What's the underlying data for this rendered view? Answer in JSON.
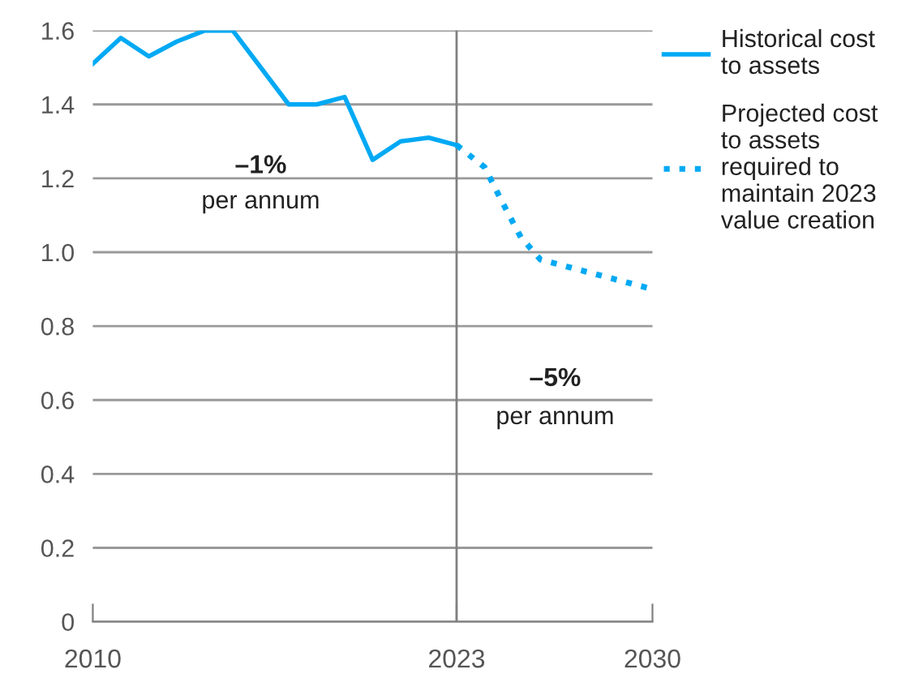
{
  "chart_data": {
    "type": "line",
    "series": [
      {
        "name": "Historical cost to assets",
        "color": "#00a9f4",
        "line_style": "solid",
        "x": [
          2010,
          2011,
          2012,
          2013,
          2014,
          2015,
          2017,
          2018,
          2019,
          2020,
          2021,
          2022,
          2023
        ],
        "values": [
          1.51,
          1.58,
          1.53,
          1.57,
          1.6,
          1.6,
          1.4,
          1.4,
          1.42,
          1.25,
          1.3,
          1.31,
          1.29
        ]
      },
      {
        "name": "Projected cost to assets required to maintain 2023 value creation",
        "color": "#00a9f4",
        "line_style": "dotted",
        "x": [
          2023,
          2024,
          2024.6,
          2025.3,
          2026,
          2027,
          2028.5,
          2030
        ],
        "values": [
          1.29,
          1.23,
          1.14,
          1.04,
          0.98,
          0.96,
          0.93,
          0.9
        ]
      }
    ],
    "xlim": [
      2010,
      2030
    ],
    "xticks": [
      2010,
      2023,
      2030
    ],
    "ylim": [
      0,
      1.6
    ],
    "yticks": [
      0,
      0.2,
      0.4,
      0.6,
      0.8,
      {
        "value": 1,
        "label": "1.0"
      },
      1.2,
      1.4,
      1.6
    ],
    "ref_lines": [
      {
        "axis": "x",
        "value": 2023,
        "color": "#808080"
      }
    ],
    "grid": "y",
    "legend": "right",
    "marker": "none",
    "annotations": [
      "–1%",
      "per annum",
      "–5%",
      "per annum"
    ]
  }
}
